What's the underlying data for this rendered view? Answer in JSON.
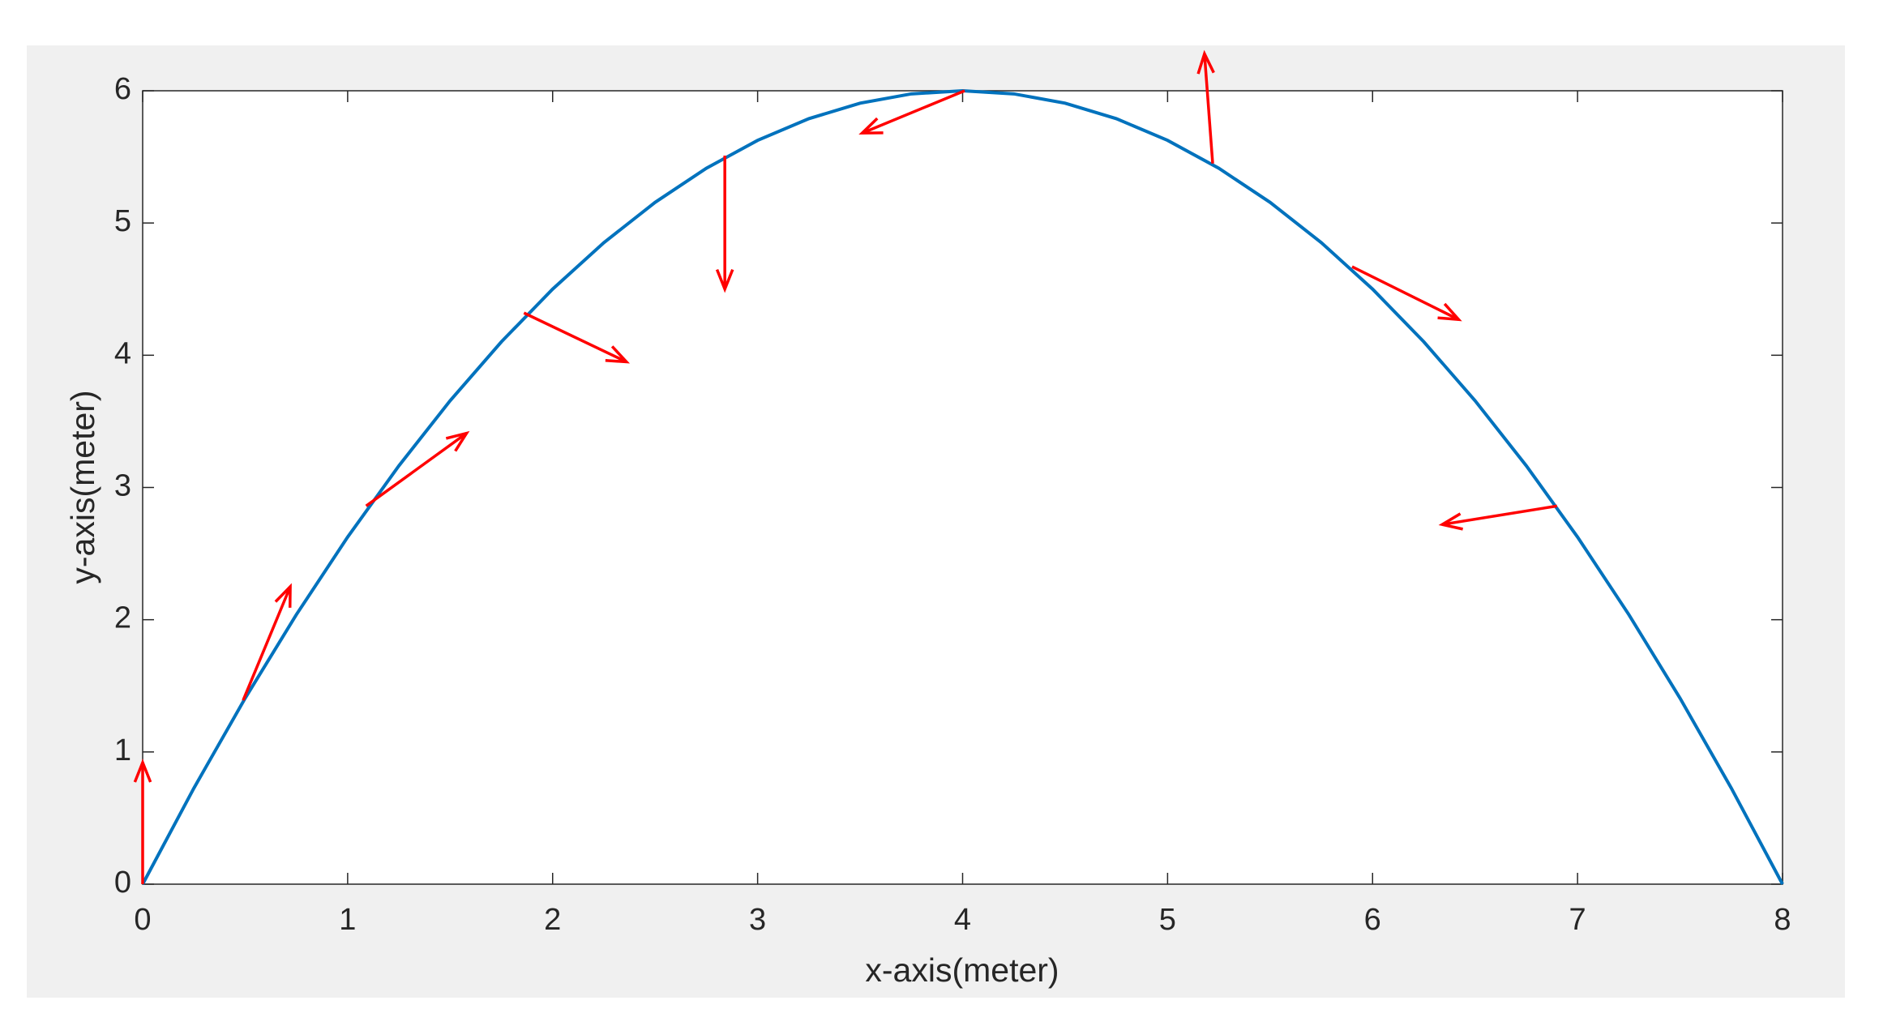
{
  "chart_data": {
    "type": "line",
    "xlabel": "x-axis(meter)",
    "ylabel": "y-axis(meter)",
    "xlim": [
      0,
      8
    ],
    "xticks": [
      0,
      1,
      2,
      3,
      4,
      5,
      6,
      7,
      8
    ],
    "ylim": [
      0,
      6
    ],
    "yticks": [
      0,
      1,
      2,
      3,
      4,
      5,
      6
    ],
    "grid": false,
    "x": [
      0,
      0.25,
      0.5,
      0.75,
      1,
      1.25,
      1.5,
      1.75,
      2,
      2.25,
      2.5,
      2.75,
      3,
      3.25,
      3.5,
      3.75,
      4,
      4.25,
      4.5,
      4.75,
      5,
      5.25,
      5.5,
      5.75,
      6,
      6.25,
      6.5,
      6.75,
      7,
      7.25,
      7.5,
      7.75,
      8
    ],
    "series": [
      {
        "color": "#0072bd",
        "values": [
          0,
          0.7265625,
          1.40625,
          2.0390625,
          2.625,
          3.1640625,
          3.65625,
          4.1015625,
          4.5,
          4.8515625,
          5.15625,
          5.4140625,
          5.625,
          5.7890625,
          5.90625,
          5.9765625,
          6,
          5.9765625,
          5.90625,
          5.7890625,
          5.625,
          5.4140625,
          5.15625,
          4.8515625,
          4.5,
          4.1015625,
          3.65625,
          3.1640625,
          2.625,
          2.0390625,
          1.40625,
          0.7265625,
          0
        ]
      }
    ],
    "arrows": {
      "color": "#ff0000",
      "x0": [
        0,
        0.49,
        1.09,
        1.86,
        2.84,
        4.01,
        5.22,
        5.9,
        6.9
      ],
      "y0": [
        0,
        1.39,
        2.86,
        4.32,
        5.51,
        6,
        5.45,
        4.67,
        2.86
      ],
      "x1": [
        0,
        0.72,
        1.58,
        2.36,
        2.84,
        3.51,
        5.18,
        6.42,
        6.34
      ],
      "y1": [
        0.92,
        2.25,
        3.41,
        3.95,
        4.5,
        5.68,
        6.28,
        4.27,
        2.72
      ]
    }
  }
}
